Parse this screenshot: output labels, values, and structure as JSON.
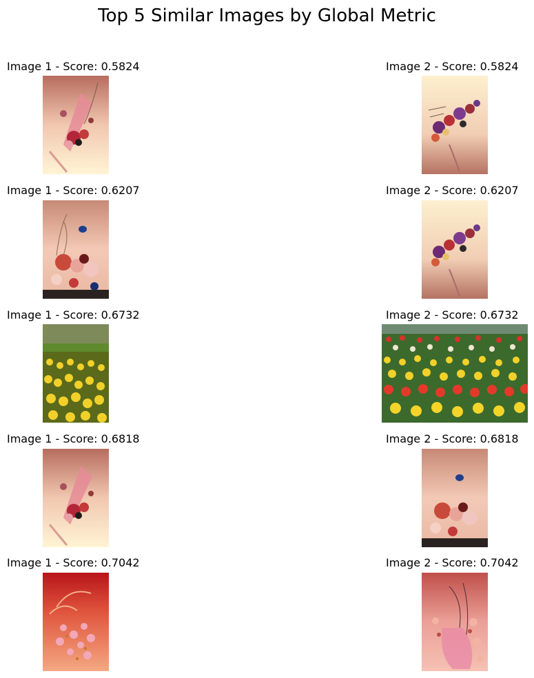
{
  "figure": {
    "title": "Top 5 Similar Images by Global Metric"
  },
  "pairs": [
    {
      "left_caption": "Image 1 - Score: 0.5824",
      "right_caption": "Image 2 - Score: 0.5824",
      "left_image": "pink-floral-painting-with-bouquet",
      "right_image": "cream-floral-painting-with-purple-flowers"
    },
    {
      "left_caption": "Image 1 - Score: 0.6207",
      "right_caption": "Image 2 - Score: 0.6207",
      "left_image": "floral-painting-with-blue-butterfly",
      "right_image": "cream-floral-painting-with-purple-flowers"
    },
    {
      "left_caption": "Image 1 - Score: 0.6732",
      "right_caption": "Image 2 - Score: 0.6732",
      "left_image": "yellow-tulip-field-photo",
      "right_image": "multicolor-tulip-field-photo"
    },
    {
      "left_caption": "Image 1 - Score: 0.6818",
      "right_caption": "Image 2 - Score: 0.6818",
      "left_image": "pink-floral-painting-with-bouquet",
      "right_image": "floral-painting-with-blue-butterfly"
    },
    {
      "left_caption": "Image 1 - Score: 0.7042",
      "right_caption": "Image 2 - Score: 0.7042",
      "left_image": "red-floral-painting-with-pink-blossoms",
      "right_image": "pink-floral-painting-with-vase"
    }
  ]
}
